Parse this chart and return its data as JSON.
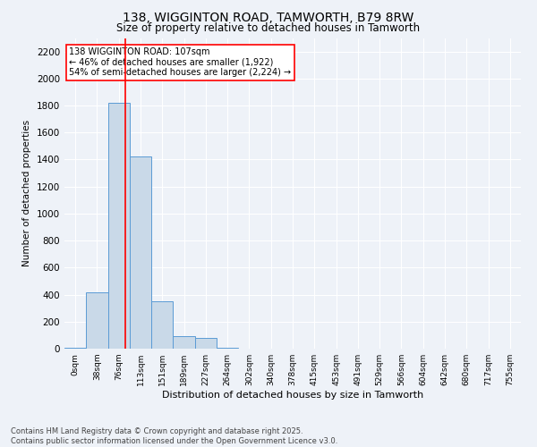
{
  "title_line1": "138, WIGGINTON ROAD, TAMWORTH, B79 8RW",
  "title_line2": "Size of property relative to detached houses in Tamworth",
  "xlabel": "Distribution of detached houses by size in Tamworth",
  "ylabel": "Number of detached properties",
  "categories": [
    "0sqm",
    "38sqm",
    "76sqm",
    "113sqm",
    "151sqm",
    "189sqm",
    "227sqm",
    "264sqm",
    "302sqm",
    "340sqm",
    "378sqm",
    "415sqm",
    "453sqm",
    "491sqm",
    "529sqm",
    "566sqm",
    "604sqm",
    "642sqm",
    "680sqm",
    "717sqm",
    "755sqm"
  ],
  "values": [
    5,
    420,
    1820,
    1420,
    350,
    90,
    80,
    5,
    0,
    0,
    0,
    0,
    0,
    0,
    0,
    0,
    0,
    0,
    0,
    0,
    0
  ],
  "bar_color": "#c9d9e8",
  "bar_edge_color": "#5b9bd5",
  "vline_x": 2.81,
  "vline_color": "red",
  "annotation_text": "138 WIGGINTON ROAD: 107sqm\n← 46% of detached houses are smaller (1,922)\n54% of semi-detached houses are larger (2,224) →",
  "ylim": [
    0,
    2300
  ],
  "yticks": [
    0,
    200,
    400,
    600,
    800,
    1000,
    1200,
    1400,
    1600,
    1800,
    2000,
    2200
  ],
  "footer_line1": "Contains HM Land Registry data © Crown copyright and database right 2025.",
  "footer_line2": "Contains public sector information licensed under the Open Government Licence v3.0.",
  "background_color": "#eef2f8",
  "plot_bg_color": "#eef2f8",
  "grid_color": "#ffffff",
  "title1_fontsize": 10,
  "title2_fontsize": 8.5,
  "xlabel_fontsize": 8,
  "ylabel_fontsize": 7.5,
  "xtick_fontsize": 6.5,
  "ytick_fontsize": 7.5,
  "annotation_fontsize": 7,
  "footer_fontsize": 6
}
